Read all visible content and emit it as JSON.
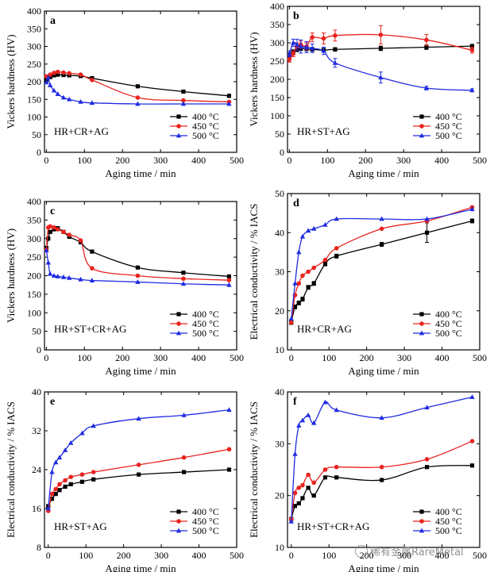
{
  "colors": {
    "400": "#000000",
    "450": "#e8231f",
    "500": "#1f2be0"
  },
  "watermark": "稀有金属RareMetal",
  "chart_data": [
    {
      "type": "line",
      "label": "a",
      "title": "",
      "condition": "HR+CR+AG",
      "xlabel": "Aging time / min",
      "ylabel": "Vickers hardness (HV)",
      "xlim": [
        -5,
        500
      ],
      "ylim": [
        0,
        400
      ],
      "xticks": [
        0,
        100,
        200,
        300,
        400,
        500
      ],
      "yticks": [
        0,
        50,
        100,
        150,
        200,
        250,
        300,
        350,
        400
      ],
      "legend_position": "bottom-right",
      "series": [
        {
          "name": "400 °C",
          "key": "400",
          "marker": "square",
          "x": [
            0,
            10,
            20,
            30,
            45,
            60,
            90,
            120,
            240,
            360,
            480
          ],
          "y": [
            205,
            213,
            218,
            220,
            219,
            218,
            216,
            210,
            187,
            172,
            160
          ]
        },
        {
          "name": "450 °C",
          "key": "450",
          "marker": "circle",
          "x": [
            0,
            10,
            20,
            30,
            45,
            60,
            90,
            120,
            240,
            360,
            480
          ],
          "y": [
            215,
            220,
            225,
            228,
            226,
            224,
            220,
            205,
            155,
            147,
            143
          ]
        },
        {
          "name": "500 °C",
          "key": "500",
          "marker": "triangle",
          "x": [
            0,
            5,
            10,
            20,
            30,
            45,
            60,
            90,
            120,
            240,
            360,
            480
          ],
          "y": [
            198,
            212,
            190,
            175,
            165,
            155,
            150,
            143,
            140,
            137,
            137,
            137
          ]
        }
      ]
    },
    {
      "type": "line",
      "label": "b",
      "title": "",
      "condition": "HR+ST+AG",
      "xlabel": "Aging time / min",
      "ylabel": "Vickers hardness (HV)",
      "xlim": [
        -5,
        500
      ],
      "ylim": [
        0,
        400
      ],
      "xticks": [
        0,
        100,
        200,
        300,
        400,
        500
      ],
      "yticks": [
        0,
        50,
        100,
        150,
        200,
        250,
        300,
        350,
        400
      ],
      "legend_position": "bottom-right",
      "series": [
        {
          "name": "400 °C",
          "key": "400",
          "marker": "square",
          "x": [
            0,
            10,
            20,
            30,
            45,
            60,
            90,
            120,
            240,
            360,
            480
          ],
          "y": [
            265,
            275,
            282,
            285,
            283,
            282,
            280,
            282,
            285,
            288,
            291
          ],
          "err": [
            8,
            6,
            6,
            6,
            5,
            5,
            5,
            5,
            6,
            6,
            5
          ]
        },
        {
          "name": "450 °C",
          "key": "450",
          "marker": "circle",
          "x": [
            0,
            10,
            20,
            30,
            45,
            60,
            90,
            120,
            240,
            360,
            480
          ],
          "y": [
            255,
            270,
            290,
            295,
            290,
            315,
            312,
            320,
            322,
            308,
            280
          ],
          "err": [
            8,
            8,
            10,
            10,
            10,
            12,
            15,
            15,
            25,
            15,
            8
          ]
        },
        {
          "name": "500 °C",
          "key": "500",
          "marker": "triangle",
          "x": [
            0,
            10,
            20,
            30,
            45,
            60,
            90,
            120,
            240,
            360,
            480
          ],
          "y": [
            270,
            300,
            295,
            290,
            288,
            285,
            278,
            245,
            205,
            176,
            170
          ],
          "err": [
            8,
            10,
            15,
            18,
            15,
            12,
            10,
            12,
            15,
            5,
            4
          ]
        }
      ]
    },
    {
      "type": "line",
      "label": "c",
      "title": "",
      "condition": "HR+ST+CR+AG",
      "xlabel": "Aging time / min",
      "ylabel": "Vickers hardness (HV)",
      "xlim": [
        -5,
        500
      ],
      "ylim": [
        0,
        400
      ],
      "xticks": [
        0,
        100,
        200,
        300,
        400,
        500
      ],
      "yticks": [
        0,
        50,
        100,
        150,
        200,
        250,
        300,
        350,
        400
      ],
      "legend_position": "bottom-right",
      "series": [
        {
          "name": "400 °C",
          "key": "400",
          "marker": "square",
          "x": [
            0,
            5,
            10,
            20,
            30,
            45,
            60,
            90,
            120,
            240,
            360,
            480
          ],
          "y": [
            275,
            300,
            318,
            325,
            328,
            318,
            305,
            290,
            265,
            222,
            208,
            198
          ]
        },
        {
          "name": "450 °C",
          "key": "450",
          "marker": "circle",
          "x": [
            0,
            5,
            10,
            20,
            30,
            45,
            60,
            90,
            120,
            240,
            360,
            480
          ],
          "y": [
            270,
            330,
            333,
            330,
            325,
            318,
            310,
            295,
            220,
            200,
            192,
            188
          ]
        },
        {
          "name": "500 °C",
          "key": "500",
          "marker": "triangle",
          "x": [
            0,
            5,
            10,
            20,
            30,
            45,
            60,
            90,
            120,
            240,
            360,
            480
          ],
          "y": [
            268,
            235,
            205,
            200,
            198,
            196,
            194,
            190,
            187,
            183,
            178,
            175
          ]
        }
      ]
    },
    {
      "type": "line",
      "label": "d",
      "title": "",
      "condition": "HR+CR+AG",
      "xlabel": "Aging time / min",
      "ylabel": "Electrical conductivity / % IACS",
      "xlim": [
        -10,
        500
      ],
      "ylim": [
        10,
        50
      ],
      "xticks": [
        0,
        100,
        200,
        300,
        400,
        500
      ],
      "yticks": [
        10,
        20,
        30,
        40,
        50
      ],
      "legend_position": "bottom-right",
      "series": [
        {
          "name": "400 °C",
          "key": "400",
          "marker": "square",
          "x": [
            0,
            10,
            20,
            30,
            45,
            60,
            90,
            120,
            240,
            360,
            480
          ],
          "y": [
            17,
            21,
            22,
            23,
            26,
            27,
            32,
            34,
            37,
            40,
            43
          ],
          "err": [
            0.5,
            0.5,
            0.5,
            0.5,
            0.5,
            0.5,
            0.5,
            0.5,
            0.5,
            2.5,
            0.5
          ]
        },
        {
          "name": "450 °C",
          "key": "450",
          "marker": "circle",
          "x": [
            0,
            10,
            20,
            30,
            45,
            60,
            90,
            120,
            240,
            360,
            480
          ],
          "y": [
            17,
            24,
            27,
            29,
            30,
            31,
            33,
            36,
            41,
            43,
            46.5
          ]
        },
        {
          "name": "500 °C",
          "key": "500",
          "marker": "triangle",
          "x": [
            0,
            10,
            20,
            30,
            45,
            60,
            90,
            120,
            240,
            360,
            480
          ],
          "y": [
            18,
            27,
            35,
            39,
            40.5,
            41,
            42,
            43.5,
            43.5,
            43.5,
            46
          ]
        }
      ]
    },
    {
      "type": "line",
      "label": "e",
      "title": "",
      "condition": "HR+ST+AG",
      "xlabel": "Aging time / min",
      "ylabel": "Electrical conductivity / % IACS",
      "xlim": [
        -10,
        500
      ],
      "ylim": [
        8,
        40
      ],
      "xticks": [
        0,
        100,
        200,
        300,
        400,
        500
      ],
      "yticks": [
        8,
        16,
        24,
        32,
        40
      ],
      "legend_position": "bottom-right",
      "series": [
        {
          "name": "400 °C",
          "key": "400",
          "marker": "square",
          "x": [
            0,
            10,
            20,
            30,
            45,
            60,
            90,
            120,
            240,
            360,
            480
          ],
          "y": [
            16.5,
            18,
            19,
            19.8,
            20.5,
            21,
            21.5,
            22,
            23,
            23.5,
            24
          ]
        },
        {
          "name": "450 °C",
          "key": "450",
          "marker": "circle",
          "x": [
            0,
            10,
            20,
            30,
            45,
            60,
            90,
            120,
            240,
            360,
            480
          ],
          "y": [
            15.5,
            19,
            20,
            21,
            21.8,
            22.5,
            23,
            23.5,
            25,
            26.5,
            28.2
          ]
        },
        {
          "name": "500 °C",
          "key": "500",
          "marker": "triangle",
          "x": [
            0,
            10,
            20,
            30,
            45,
            60,
            90,
            120,
            240,
            360,
            480
          ],
          "y": [
            16,
            23.5,
            25.5,
            26.5,
            28,
            29.5,
            31.5,
            33,
            34.5,
            35.2,
            36.3
          ]
        }
      ]
    },
    {
      "type": "line",
      "label": "f",
      "title": "",
      "condition": "HR+ST+CR+AG",
      "xlabel": "Aging time / min",
      "ylabel": "Electrical conductivity / % IACS",
      "xlim": [
        -10,
        500
      ],
      "ylim": [
        10,
        40
      ],
      "xticks": [
        0,
        100,
        200,
        300,
        400,
        500
      ],
      "yticks": [
        10,
        20,
        30,
        40
      ],
      "legend_position": "bottom-right",
      "series": [
        {
          "name": "400 °C",
          "key": "400",
          "marker": "square",
          "x": [
            0,
            10,
            20,
            30,
            45,
            60,
            90,
            120,
            240,
            360,
            480
          ],
          "y": [
            15.5,
            18,
            18.5,
            19.5,
            21.5,
            20,
            23.5,
            23.5,
            23,
            25.5,
            25.8
          ]
        },
        {
          "name": "450 °C",
          "key": "450",
          "marker": "circle",
          "x": [
            0,
            10,
            20,
            30,
            45,
            60,
            90,
            120,
            240,
            360,
            480
          ],
          "y": [
            15.5,
            20.5,
            21.5,
            22,
            24,
            22.5,
            25,
            25.5,
            25.5,
            27,
            30.5
          ]
        },
        {
          "name": "500 °C",
          "key": "500",
          "marker": "triangle",
          "x": [
            0,
            10,
            20,
            30,
            45,
            60,
            90,
            120,
            240,
            360,
            480
          ],
          "y": [
            15,
            28,
            33.5,
            34.5,
            35.5,
            34,
            38,
            36.5,
            35,
            37,
            39
          ]
        }
      ]
    }
  ]
}
